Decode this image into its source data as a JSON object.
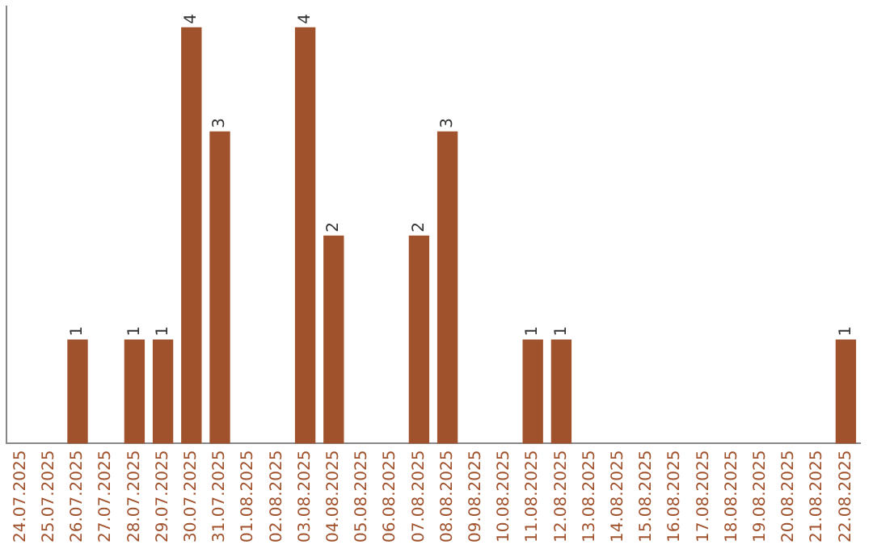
{
  "chart_data": {
    "type": "bar",
    "categories": [
      "24.07.2025",
      "25.07.2025",
      "26.07.2025",
      "27.07.2025",
      "28.07.2025",
      "29.07.2025",
      "30.07.2025",
      "31.07.2025",
      "01.08.2025",
      "02.08.2025",
      "03.08.2025",
      "04.08.2025",
      "05.08.2025",
      "06.08.2025",
      "07.08.2025",
      "08.08.2025",
      "09.08.2025",
      "10.08.2025",
      "11.08.2025",
      "12.08.2025",
      "13.08.2025",
      "14.08.2025",
      "15.08.2025",
      "16.08.2025",
      "17.08.2025",
      "18.08.2025",
      "19.08.2025",
      "20.08.2025",
      "21.08.2025",
      "22.08.2025"
    ],
    "values": [
      0,
      0,
      1,
      0,
      1,
      1,
      4,
      3,
      0,
      0,
      4,
      2,
      0,
      0,
      2,
      3,
      0,
      0,
      1,
      1,
      0,
      0,
      0,
      0,
      0,
      0,
      0,
      0,
      0,
      1
    ],
    "value_labels": [
      null,
      null,
      "1",
      null,
      "1",
      "1",
      "4",
      "3",
      null,
      null,
      "4",
      "2",
      null,
      null,
      "2",
      "3",
      null,
      null,
      "1",
      "1",
      null,
      null,
      null,
      null,
      null,
      null,
      null,
      null,
      null,
      "1"
    ],
    "color": "#a0522d",
    "ylim": [
      0,
      4.2
    ],
    "tick_labels": "x",
    "grid": false,
    "legend": false
  }
}
